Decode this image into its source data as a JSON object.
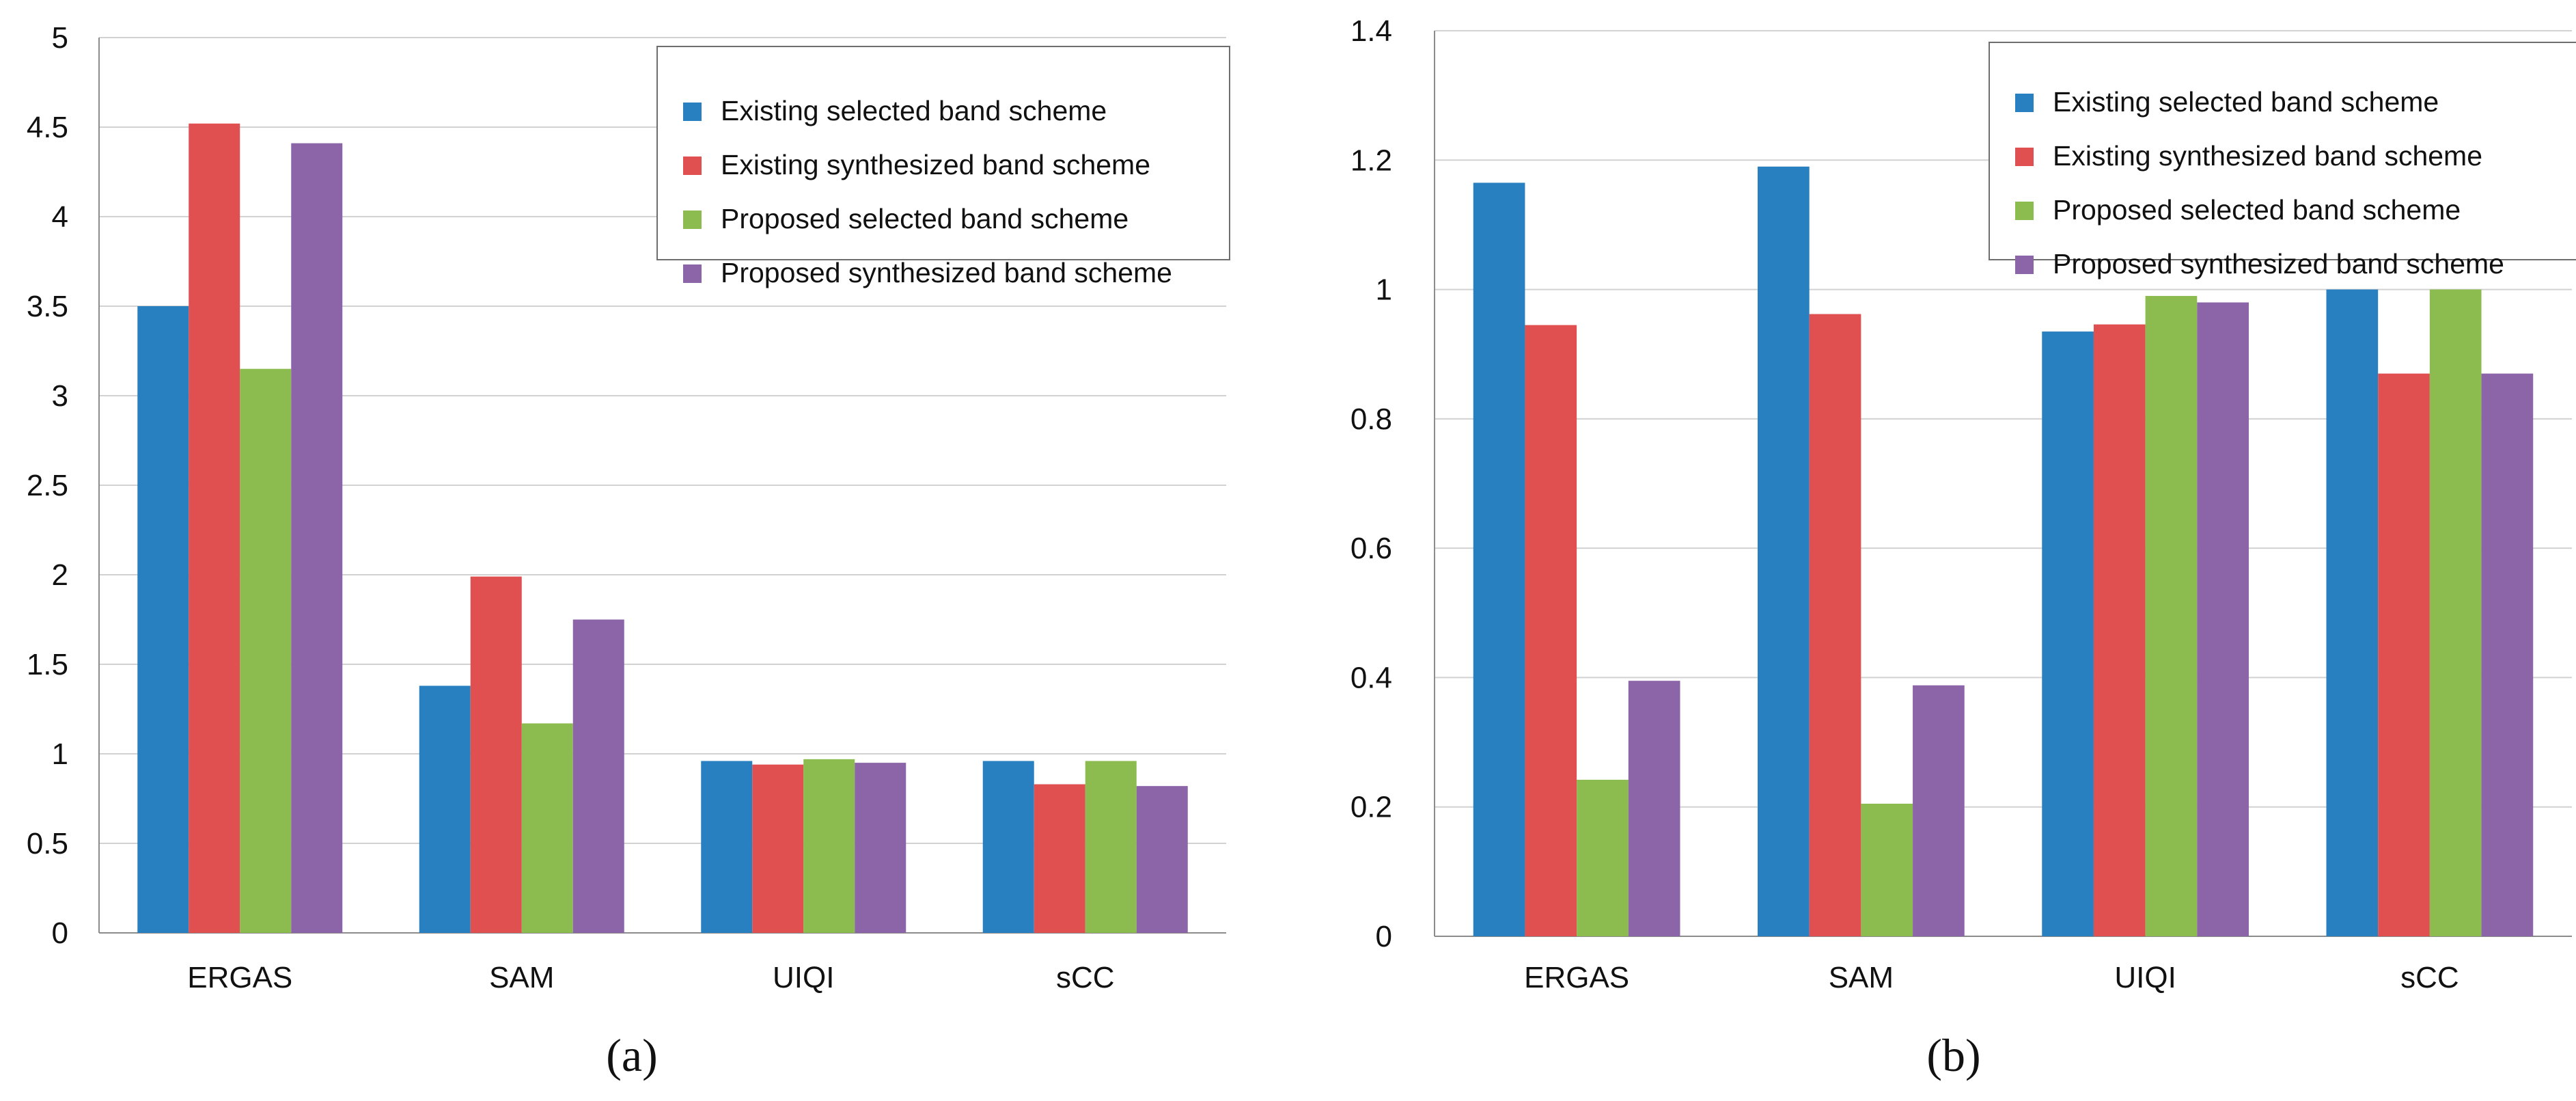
{
  "colors": {
    "series": [
      "#2980c0",
      "#e05050",
      "#8cbc50",
      "#8c64a8"
    ]
  },
  "chart_data": [
    {
      "type": "bar",
      "caption": "(a)",
      "categories": [
        "ERGAS",
        "SAM",
        "UIQI",
        "sCC"
      ],
      "series": [
        {
          "name": "Existing selected band scheme",
          "values": [
            3.5,
            1.38,
            0.96,
            0.96
          ]
        },
        {
          "name": "Existing synthesized band scheme",
          "values": [
            4.52,
            1.99,
            0.94,
            0.83
          ]
        },
        {
          "name": "Proposed selected band scheme",
          "values": [
            3.15,
            1.17,
            0.97,
            0.96
          ]
        },
        {
          "name": "Proposed synthesized band scheme",
          "values": [
            4.41,
            1.75,
            0.95,
            0.82
          ]
        }
      ],
      "ylim": [
        0,
        5
      ],
      "yticks": [
        "0",
        "0.5",
        "1",
        "1.5",
        "2",
        "2.5",
        "3",
        "3.5",
        "4",
        "4.5",
        "5"
      ],
      "legend_position": "top-right"
    },
    {
      "type": "bar",
      "caption": "(b)",
      "categories": [
        "ERGAS",
        "SAM",
        "UIQI",
        "sCC"
      ],
      "series": [
        {
          "name": "Existing selected band scheme",
          "values": [
            1.165,
            1.19,
            0.935,
            1.0
          ]
        },
        {
          "name": "Existing synthesized band scheme",
          "values": [
            0.945,
            0.962,
            0.946,
            0.87
          ]
        },
        {
          "name": "Proposed selected band scheme",
          "values": [
            0.242,
            0.205,
            0.99,
            1.0
          ]
        },
        {
          "name": "Proposed synthesized band scheme",
          "values": [
            0.395,
            0.388,
            0.98,
            0.87
          ]
        }
      ],
      "ylim": [
        0,
        1.4
      ],
      "yticks": [
        "0",
        "0.2",
        "0.4",
        "0.6",
        "0.8",
        "1",
        "1.2",
        "1.4"
      ],
      "legend_position": "top-right"
    }
  ]
}
